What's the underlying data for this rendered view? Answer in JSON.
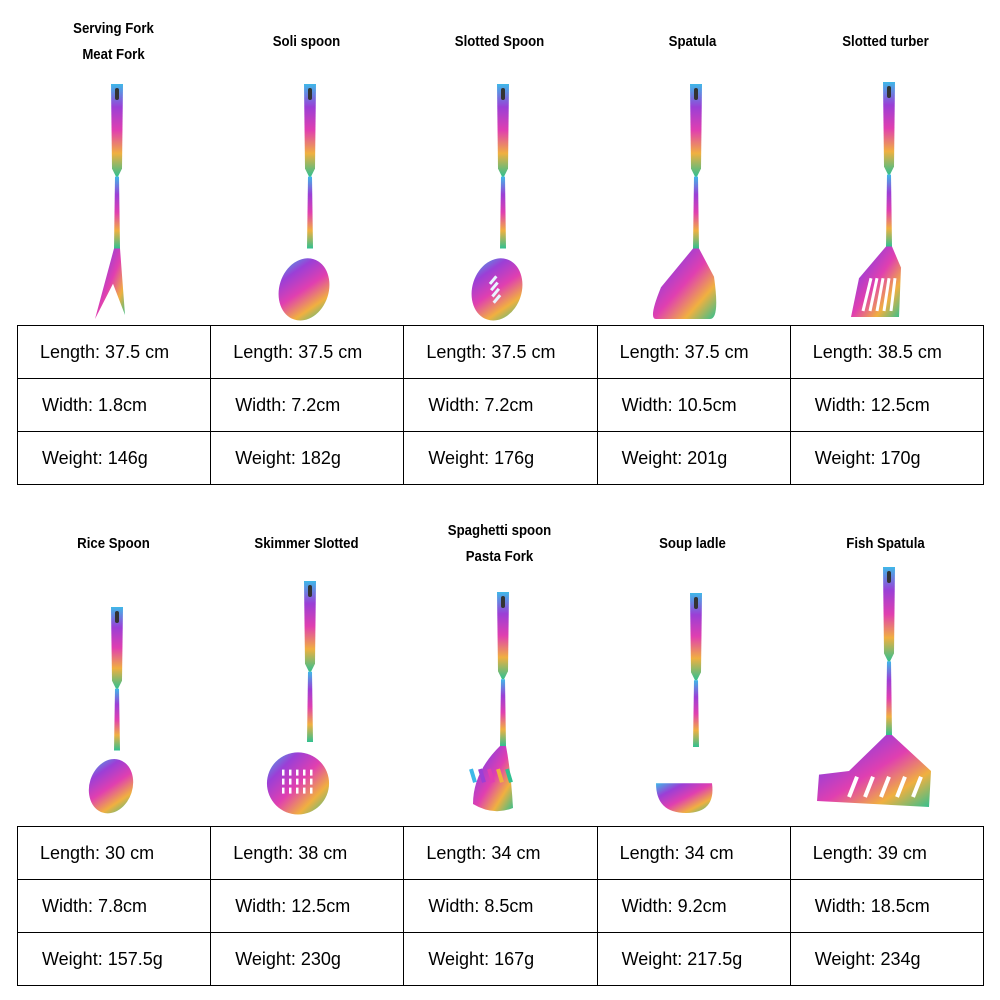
{
  "groups": [
    {
      "items": [
        {
          "title": "Serving Fork\nMeat Fork",
          "head": "fork",
          "length": "Length: 37.5 cm",
          "width": "Width: 1.8cm",
          "weight": "Weight: 146g"
        },
        {
          "title": "Soli spoon",
          "head": "spoon",
          "length": "Length: 37.5 cm",
          "width": "Width: 7.2cm",
          "weight": "Weight: 182g"
        },
        {
          "title": "Slotted Spoon",
          "head": "slotted-spoon",
          "length": "Length: 37.5 cm",
          "width": "Width: 7.2cm",
          "weight": "Weight: 176g"
        },
        {
          "title": "Spatula",
          "head": "spatula",
          "length": "Length: 37.5 cm",
          "width": "Width: 10.5cm",
          "weight": "Weight: 201g"
        },
        {
          "title": "Slotted turber",
          "head": "slotted-turner",
          "length": "Length: 38.5 cm",
          "width": "Width: 12.5cm",
          "weight": "Weight: 170g"
        }
      ]
    },
    {
      "items": [
        {
          "title": "Rice Spoon",
          "head": "rice-spoon",
          "length": "Length: 30 cm",
          "width": "Width: 7.8cm",
          "weight": "Weight: 157.5g"
        },
        {
          "title": "Skimmer Slotted",
          "head": "skimmer",
          "length": "Length: 38 cm",
          "width": "Width: 12.5cm",
          "weight": "Weight: 230g"
        },
        {
          "title": "Spaghetti spoon\nPasta Fork",
          "head": "pasta",
          "length": "Length: 34 cm",
          "width": "Width: 8.5cm",
          "weight": "Weight: 167g"
        },
        {
          "title": "Soup ladle",
          "head": "ladle",
          "length": "Length: 34 cm",
          "width": "Width: 9.2cm",
          "weight": "Weight: 217.5g"
        },
        {
          "title": "Fish Spatula",
          "head": "fish-spatula",
          "length": "Length: 39 cm",
          "width": "Width: 18.5cm",
          "weight": "Weight: 234g"
        }
      ]
    }
  ],
  "colors": {
    "iridescent": [
      "#3fb8e8",
      "#9b3fd6",
      "#e03fb0",
      "#f0b040",
      "#30c090"
    ]
  }
}
